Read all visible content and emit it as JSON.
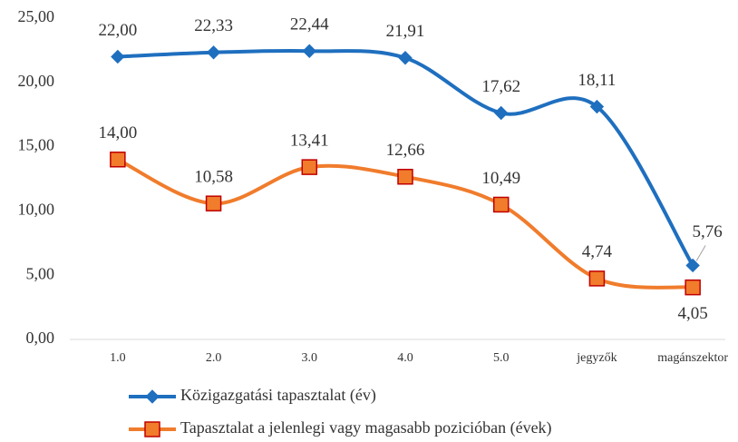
{
  "chart_data": {
    "type": "line",
    "categories": [
      "1.0",
      "2.0",
      "3.0",
      "4.0",
      "5.0",
      "jegyzők",
      "magánszektor"
    ],
    "series": [
      {
        "name": "Közigazgatási tapasztalat (év)",
        "color": "#1f6fbf",
        "marker": "diamond",
        "values": [
          22.0,
          22.33,
          22.44,
          21.91,
          17.62,
          18.11,
          5.76
        ],
        "value_labels": [
          "22,00",
          "22,33",
          "22,44",
          "21,91",
          "17,62",
          "18,11",
          "5,76"
        ]
      },
      {
        "name": "Tapasztalat a jelenlegi vagy magasabb pozicióban (évek)",
        "color": "#f07c2c",
        "marker": "square",
        "values": [
          14.0,
          10.58,
          13.41,
          12.66,
          10.49,
          4.74,
          4.05
        ],
        "value_labels": [
          "14,00",
          "10,58",
          "13,41",
          "12,66",
          "10,49",
          "4,74",
          "4,05"
        ]
      }
    ],
    "ylim": [
      0,
      25
    ],
    "yticks": [
      {
        "value": 0,
        "label": "0,00"
      },
      {
        "value": 5,
        "label": "5,00"
      },
      {
        "value": 10,
        "label": "10,00"
      },
      {
        "value": 15,
        "label": "15,00"
      },
      {
        "value": 20,
        "label": "20,00"
      },
      {
        "value": 25,
        "label": "25,00"
      }
    ],
    "grid": false,
    "smooth": true,
    "legend": "bottom"
  }
}
